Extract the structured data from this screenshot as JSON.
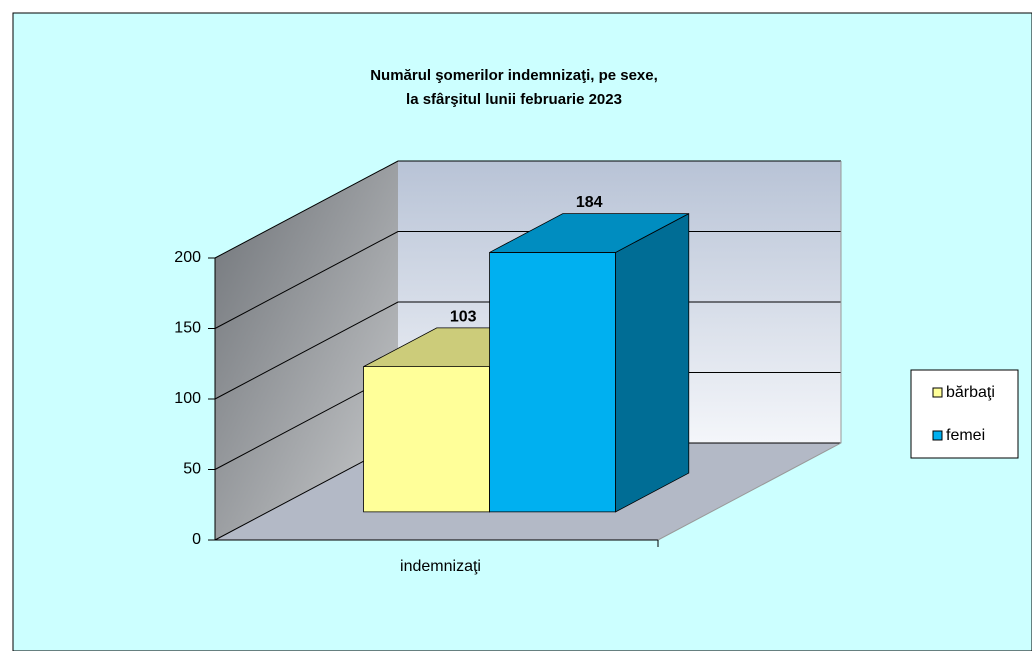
{
  "chart_data": {
    "type": "bar3d",
    "title": [
      "Numărul şomerilor  indemnizaţi,  pe sexe,",
      "la sfârşitul lunii februarie 2023"
    ],
    "categories": [
      "indemnizaţi"
    ],
    "series": [
      {
        "name": "bărbaţi",
        "color": "#ffff99",
        "values": [
          103
        ]
      },
      {
        "name": "femei",
        "color": "#00b0f0",
        "values": [
          184
        ]
      }
    ],
    "ylim": [
      0,
      200
    ],
    "yticks": [
      0,
      50,
      100,
      150,
      200
    ],
    "grid": true,
    "legend": "right"
  }
}
